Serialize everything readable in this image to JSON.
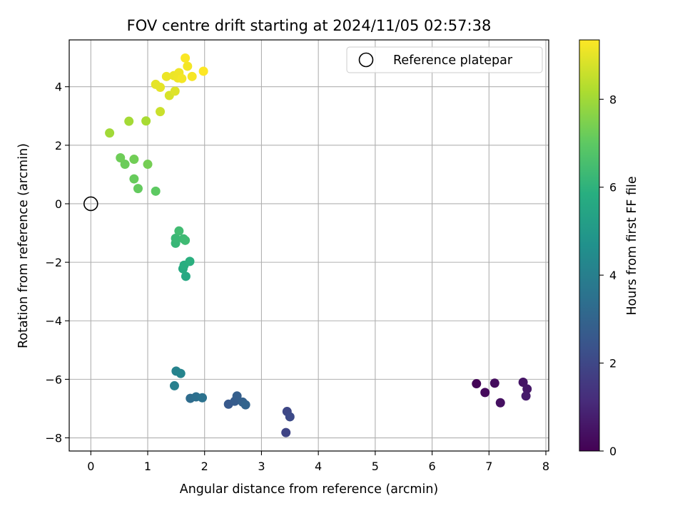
{
  "chart_data": {
    "type": "scatter",
    "title": "FOV centre drift starting at 2024/11/05 02:57:38",
    "xlabel": "Angular distance from reference (arcmin)",
    "ylabel": "Rotation from reference (arcmin)",
    "xlim": [
      -0.38,
      8.05
    ],
    "ylim": [
      -8.45,
      5.6
    ],
    "xticks": [
      0,
      1,
      2,
      3,
      4,
      5,
      6,
      7,
      8
    ],
    "yticks": [
      -8,
      -6,
      -4,
      -2,
      0,
      2,
      4
    ],
    "xtick_labels": [
      "0",
      "1",
      "2",
      "3",
      "4",
      "5",
      "6",
      "7",
      "8"
    ],
    "ytick_labels": [
      "−8",
      "−6",
      "−4",
      "−2",
      "0",
      "2",
      "4"
    ],
    "grid": true,
    "legend": {
      "placement": "top-right",
      "label": "Reference platepar"
    },
    "colorbar": {
      "label": "Hours from first FF file",
      "colormap": "viridis",
      "range": [
        0,
        9.35
      ],
      "ticks": [
        0,
        2,
        4,
        6,
        8
      ],
      "tick_labels": [
        "0",
        "2",
        "4",
        "6",
        "8"
      ]
    },
    "reference_point": {
      "x": 0,
      "y": 0
    },
    "points": [
      {
        "x": 6.78,
        "y": -6.15,
        "hours": 0.1
      },
      {
        "x": 6.93,
        "y": -6.45,
        "hours": 0.2
      },
      {
        "x": 7.1,
        "y": -6.13,
        "hours": 0.3
      },
      {
        "x": 7.2,
        "y": -6.8,
        "hours": 0.4
      },
      {
        "x": 7.6,
        "y": -6.1,
        "hours": 0.5
      },
      {
        "x": 7.67,
        "y": -6.33,
        "hours": 0.6
      },
      {
        "x": 7.65,
        "y": -6.57,
        "hours": 0.7
      },
      {
        "x": 3.43,
        "y": -7.82,
        "hours": 1.9
      },
      {
        "x": 3.45,
        "y": -7.1,
        "hours": 2.0
      },
      {
        "x": 3.5,
        "y": -7.28,
        "hours": 2.1
      },
      {
        "x": 2.42,
        "y": -6.85,
        "hours": 2.6
      },
      {
        "x": 2.53,
        "y": -6.75,
        "hours": 2.7
      },
      {
        "x": 2.57,
        "y": -6.57,
        "hours": 2.8
      },
      {
        "x": 2.67,
        "y": -6.78,
        "hours": 2.9
      },
      {
        "x": 2.72,
        "y": -6.87,
        "hours": 3.0
      },
      {
        "x": 1.75,
        "y": -6.65,
        "hours": 3.3
      },
      {
        "x": 1.85,
        "y": -6.6,
        "hours": 3.4
      },
      {
        "x": 1.96,
        "y": -6.63,
        "hours": 3.5
      },
      {
        "x": 1.47,
        "y": -6.22,
        "hours": 4.0
      },
      {
        "x": 1.5,
        "y": -5.72,
        "hours": 4.1
      },
      {
        "x": 1.58,
        "y": -5.8,
        "hours": 4.2
      },
      {
        "x": 1.67,
        "y": -2.48,
        "hours": 5.6
      },
      {
        "x": 1.62,
        "y": -2.22,
        "hours": 5.7
      },
      {
        "x": 1.64,
        "y": -2.1,
        "hours": 5.8
      },
      {
        "x": 1.74,
        "y": -1.97,
        "hours": 5.9
      },
      {
        "x": 1.49,
        "y": -1.35,
        "hours": 6.2
      },
      {
        "x": 1.49,
        "y": -1.18,
        "hours": 6.25
      },
      {
        "x": 1.63,
        "y": -1.2,
        "hours": 6.3
      },
      {
        "x": 1.66,
        "y": -1.25,
        "hours": 6.35
      },
      {
        "x": 1.55,
        "y": -0.93,
        "hours": 6.4
      },
      {
        "x": 1.14,
        "y": 0.43,
        "hours": 7.0
      },
      {
        "x": 0.83,
        "y": 0.52,
        "hours": 7.1
      },
      {
        "x": 0.76,
        "y": 0.85,
        "hours": 7.15
      },
      {
        "x": 0.6,
        "y": 1.35,
        "hours": 7.2
      },
      {
        "x": 0.52,
        "y": 1.57,
        "hours": 7.25
      },
      {
        "x": 0.76,
        "y": 1.52,
        "hours": 7.3
      },
      {
        "x": 1.0,
        "y": 1.35,
        "hours": 7.35
      },
      {
        "x": 0.33,
        "y": 2.42,
        "hours": 8.0
      },
      {
        "x": 0.67,
        "y": 2.82,
        "hours": 8.05
      },
      {
        "x": 0.97,
        "y": 2.83,
        "hours": 8.1
      },
      {
        "x": 1.22,
        "y": 3.15,
        "hours": 8.6
      },
      {
        "x": 1.38,
        "y": 3.7,
        "hours": 8.8
      },
      {
        "x": 1.48,
        "y": 3.85,
        "hours": 8.9
      },
      {
        "x": 1.14,
        "y": 4.08,
        "hours": 9.0
      },
      {
        "x": 1.22,
        "y": 3.98,
        "hours": 9.0
      },
      {
        "x": 1.33,
        "y": 4.35,
        "hours": 9.1
      },
      {
        "x": 1.46,
        "y": 4.38,
        "hours": 9.1
      },
      {
        "x": 1.53,
        "y": 4.3,
        "hours": 9.15
      },
      {
        "x": 1.55,
        "y": 4.48,
        "hours": 9.15
      },
      {
        "x": 1.6,
        "y": 4.28,
        "hours": 9.2
      },
      {
        "x": 1.7,
        "y": 4.7,
        "hours": 9.2
      },
      {
        "x": 1.78,
        "y": 4.35,
        "hours": 9.25
      },
      {
        "x": 1.66,
        "y": 4.98,
        "hours": 9.3
      },
      {
        "x": 1.98,
        "y": 4.53,
        "hours": 9.35
      }
    ]
  }
}
